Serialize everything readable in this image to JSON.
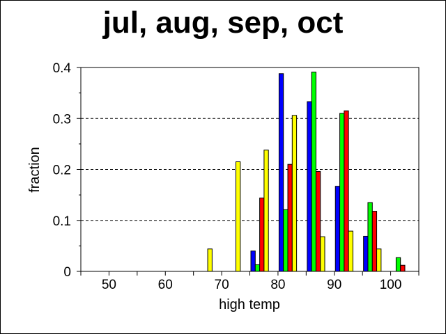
{
  "chart_data": {
    "type": "bar",
    "title": "jul, aug, sep, oct",
    "xlabel": "high temp",
    "ylabel": "fraction",
    "xlim": [
      45,
      105
    ],
    "ylim": [
      0,
      0.4
    ],
    "x_ticks": [
      50,
      60,
      70,
      80,
      90,
      100
    ],
    "y_ticks": [
      0,
      0.1,
      0.2,
      0.3,
      0.4
    ],
    "grid": "horizontal dashed",
    "bins": [
      65,
      70,
      75,
      80,
      85,
      90,
      95,
      100
    ],
    "series": [
      {
        "color": "#0000ff",
        "values": [
          0,
          0,
          0.04,
          0.388,
          0.333,
          0.167,
          0.069,
          0
        ]
      },
      {
        "color": "#00ff00",
        "values": [
          0,
          0,
          0.013,
          0.121,
          0.391,
          0.31,
          0.135,
          0.027
        ]
      },
      {
        "color": "#ff0000",
        "values": [
          0,
          0,
          0.144,
          0.21,
          0.196,
          0.315,
          0.118,
          0.012
        ]
      },
      {
        "color": "#ffff00",
        "values": [
          0.044,
          0.215,
          0.238,
          0.306,
          0.068,
          0.079,
          0.044,
          0
        ]
      }
    ]
  }
}
